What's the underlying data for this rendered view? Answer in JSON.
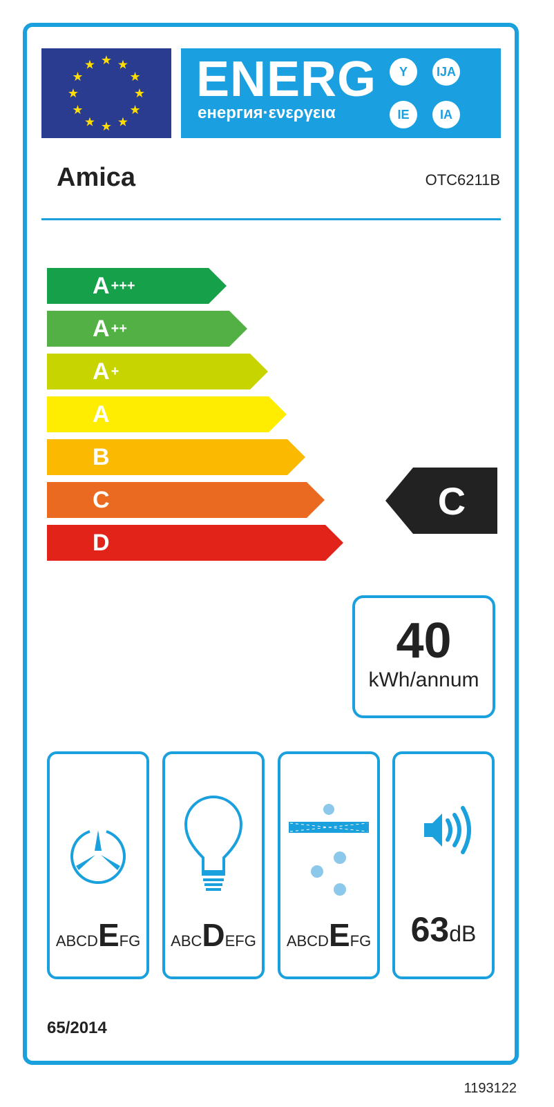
{
  "header": {
    "title": "ENERG",
    "subtitle": "енергия·ενεργεια",
    "suffixes": [
      "Y",
      "IJA",
      "IE",
      "IA"
    ]
  },
  "supplier": "Amica",
  "model": "OTC6211B",
  "classes": [
    {
      "letter": "A",
      "plus": "+++",
      "color": "#16a04a"
    },
    {
      "letter": "A",
      "plus": "++",
      "color": "#52b044"
    },
    {
      "letter": "A",
      "plus": "+",
      "color": "#c8d400"
    },
    {
      "letter": "A",
      "plus": "",
      "color": "#ffed00"
    },
    {
      "letter": "B",
      "plus": "",
      "color": "#fbba00"
    },
    {
      "letter": "C",
      "plus": "",
      "color": "#eb6a22"
    },
    {
      "letter": "D",
      "plus": "",
      "color": "#e2231a"
    }
  ],
  "energy_class": "C",
  "consumption": {
    "value": "40",
    "unit": "kWh/annum"
  },
  "fluid_dynamic": {
    "before": "ABCD",
    "class": "E",
    "after": "FG"
  },
  "lighting": {
    "before": "ABC",
    "class": "D",
    "after": "EFG"
  },
  "grease_filtering": {
    "before": "ABCD",
    "class": "E",
    "after": "FG"
  },
  "noise": {
    "value": "63",
    "unit": "dB"
  },
  "regulation": "65/2014",
  "code": "1193122",
  "colors": {
    "frame": "#1aa0dc",
    "flag": "#2a3c8f",
    "banner": "#1a9fe0"
  }
}
